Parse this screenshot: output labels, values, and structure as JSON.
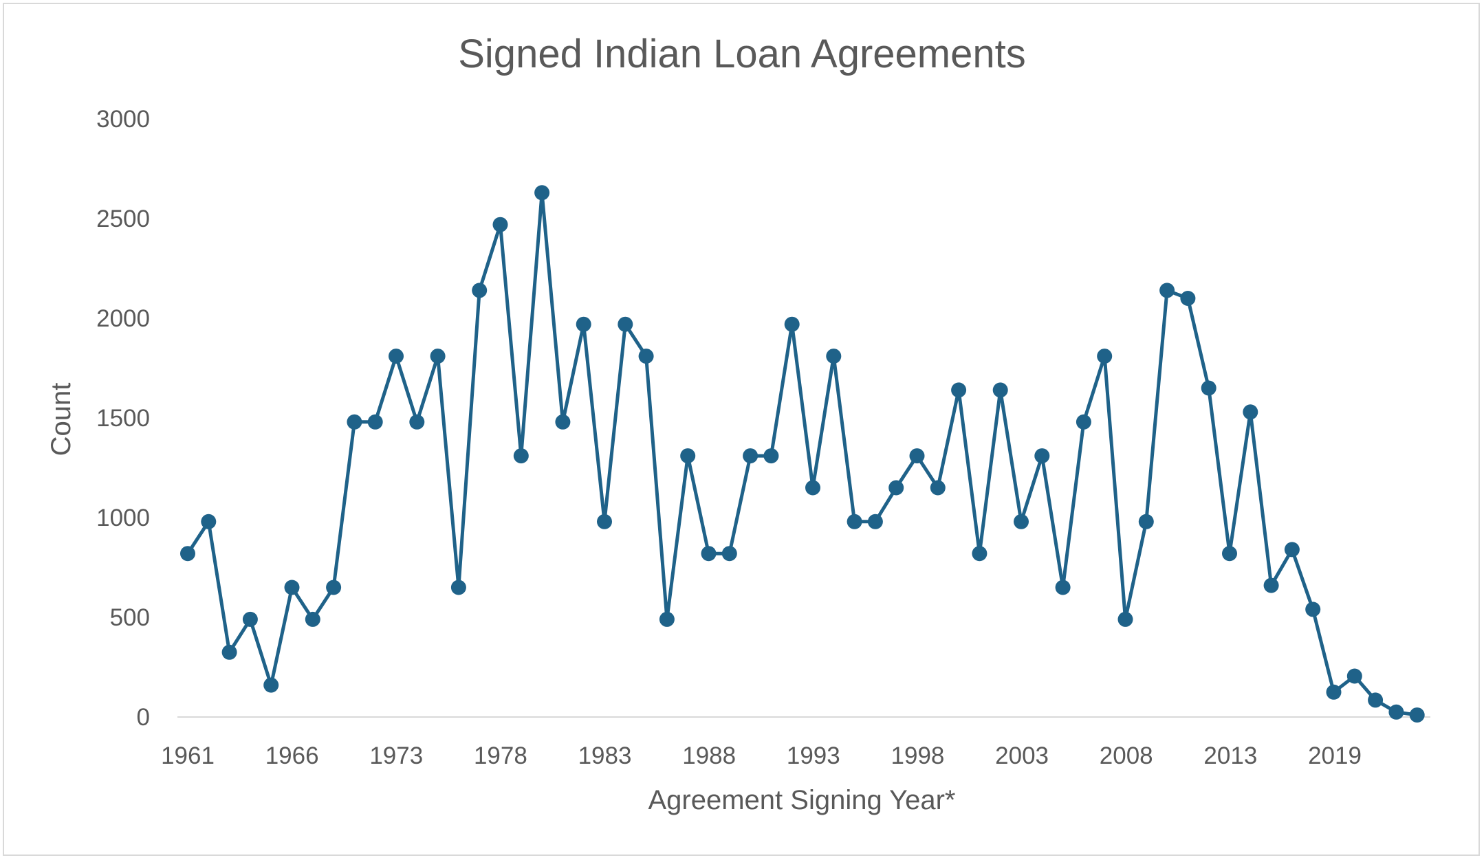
{
  "chart_data": {
    "type": "line",
    "title": "Signed Indian Loan Agreements",
    "xlabel": "Agreement Signing Year*",
    "ylabel": "Count",
    "ylim": [
      0,
      3000
    ],
    "y_ticks": [
      "0",
      "500",
      "1000",
      "1500",
      "2000",
      "2500",
      "3000"
    ],
    "x_ticks": [
      "1961",
      "1966",
      "1973",
      "1978",
      "1983",
      "1988",
      "1993",
      "1998",
      "2003",
      "2008",
      "2013",
      "2019"
    ],
    "grid": false,
    "legend": "none",
    "markers": true,
    "colors": {
      "series": "#1f6289",
      "axis": "#d9d9d9",
      "text": "#595959"
    },
    "series": [
      {
        "values": [
          820,
          980,
          325,
          490,
          160,
          650,
          490,
          650,
          1480,
          1480,
          1810,
          1480,
          1810,
          650,
          2140,
          2470,
          1310,
          2630,
          1480,
          1970,
          980,
          1970,
          1810,
          490,
          1310,
          820,
          820,
          1310,
          1310,
          1970,
          1150,
          1810,
          980,
          980,
          1150,
          1310,
          1150,
          1640,
          820,
          1640,
          980,
          1310,
          650,
          1480,
          1810,
          490,
          980,
          2140,
          2100,
          1650,
          820,
          1530,
          660,
          840,
          540,
          125,
          205,
          85,
          25,
          10
        ]
      }
    ]
  }
}
